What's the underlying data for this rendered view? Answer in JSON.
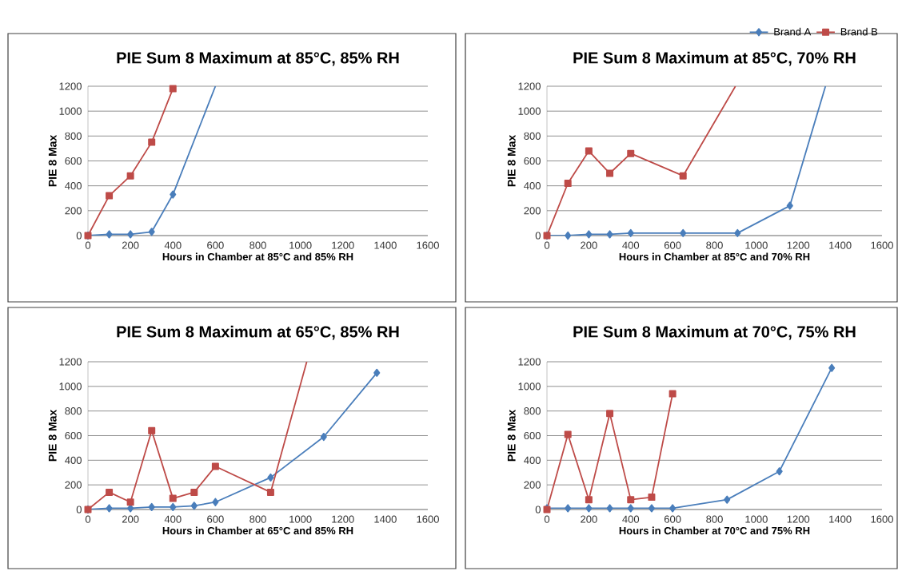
{
  "chart_data": [
    {
      "type": "line",
      "title": "PIE Sum 8 Maximum at 85°C, 85% RH",
      "xlabel": "Hours in Chamber at 85°C and 85% RH",
      "ylabel": "PIE 8  Max",
      "xlim": [
        0,
        1600
      ],
      "ylim": [
        0,
        1200
      ],
      "xticks": [
        0,
        200,
        400,
        600,
        800,
        1000,
        1200,
        1400,
        1600
      ],
      "yticks": [
        0,
        200,
        400,
        600,
        800,
        1000,
        1200
      ],
      "grid": "y",
      "series": [
        {
          "color": "#4a7ebb",
          "marker": "diamond",
          "x": [
            0,
            100,
            200,
            300,
            400,
            600
          ],
          "values": [
            0,
            10,
            10,
            30,
            330,
            1200
          ]
        },
        {
          "color": "#be4b48",
          "marker": "square",
          "x": [
            0,
            100,
            200,
            300,
            400
          ],
          "values": [
            0,
            320,
            480,
            750,
            1180
          ]
        }
      ]
    },
    {
      "type": "line",
      "title": "PIE Sum 8 Maximum at 85°C, 70% RH",
      "xlabel": "Hours in Chamber at 85°C and 70% RH",
      "ylabel": "PIE 8  Max",
      "xlim": [
        0,
        1600
      ],
      "ylim": [
        0,
        1200
      ],
      "xticks": [
        0,
        200,
        400,
        600,
        800,
        1000,
        1200,
        1400,
        1600
      ],
      "yticks": [
        0,
        200,
        400,
        600,
        800,
        1000,
        1200
      ],
      "grid": "y",
      "legend": "top right",
      "series": [
        {
          "name": "Brand A",
          "color": "#4a7ebb",
          "marker": "diamond",
          "x": [
            0,
            100,
            200,
            300,
            400,
            650,
            910,
            1160,
            1330
          ],
          "values": [
            0,
            0,
            10,
            10,
            20,
            20,
            20,
            240,
            1200
          ]
        },
        {
          "name": "Brand B",
          "color": "#be4b48",
          "marker": "square",
          "x": [
            0,
            100,
            200,
            300,
            400,
            650,
            900
          ],
          "values": [
            0,
            420,
            680,
            500,
            660,
            480,
            1200
          ]
        }
      ]
    },
    {
      "type": "line",
      "title": "PIE Sum 8 Maximum at 65°C, 85% RH",
      "xlabel": "Hours in Chamber at 65°C and 85% RH",
      "ylabel": "PIE 8  Max",
      "xlim": [
        0,
        1600
      ],
      "ylim": [
        0,
        1200
      ],
      "xticks": [
        0,
        200,
        400,
        600,
        800,
        1000,
        1200,
        1400,
        1600
      ],
      "yticks": [
        0,
        200,
        400,
        600,
        800,
        1000,
        1200
      ],
      "grid": "y",
      "series": [
        {
          "color": "#4a7ebb",
          "marker": "diamond",
          "x": [
            0,
            100,
            200,
            300,
            400,
            500,
            600,
            860,
            1110,
            1360
          ],
          "values": [
            0,
            10,
            10,
            20,
            20,
            30,
            60,
            260,
            590,
            1110
          ]
        },
        {
          "color": "#be4b48",
          "marker": "square",
          "x": [
            0,
            100,
            200,
            300,
            400,
            500,
            600,
            860,
            1030
          ],
          "values": [
            0,
            140,
            60,
            640,
            90,
            140,
            350,
            140,
            1200
          ]
        }
      ]
    },
    {
      "type": "line",
      "title": "PIE Sum 8 Maximum at 70°C, 75% RH",
      "xlabel": "Hours in Chamber at 70°C and 75% RH",
      "ylabel": "PIE 8  Max",
      "xlim": [
        0,
        1600
      ],
      "ylim": [
        0,
        1200
      ],
      "xticks": [
        0,
        200,
        400,
        600,
        800,
        1000,
        1200,
        1400,
        1600
      ],
      "yticks": [
        0,
        200,
        400,
        600,
        800,
        1000,
        1200
      ],
      "grid": "y",
      "series": [
        {
          "color": "#4a7ebb",
          "marker": "diamond",
          "x": [
            0,
            100,
            200,
            300,
            400,
            500,
            600,
            860,
            1110,
            1360
          ],
          "values": [
            10,
            10,
            10,
            10,
            10,
            10,
            10,
            80,
            310,
            1150
          ]
        },
        {
          "color": "#be4b48",
          "marker": "square",
          "x": [
            0,
            100,
            200,
            300,
            400,
            500,
            600
          ],
          "values": [
            0,
            610,
            80,
            780,
            80,
            100,
            940
          ]
        }
      ]
    }
  ]
}
